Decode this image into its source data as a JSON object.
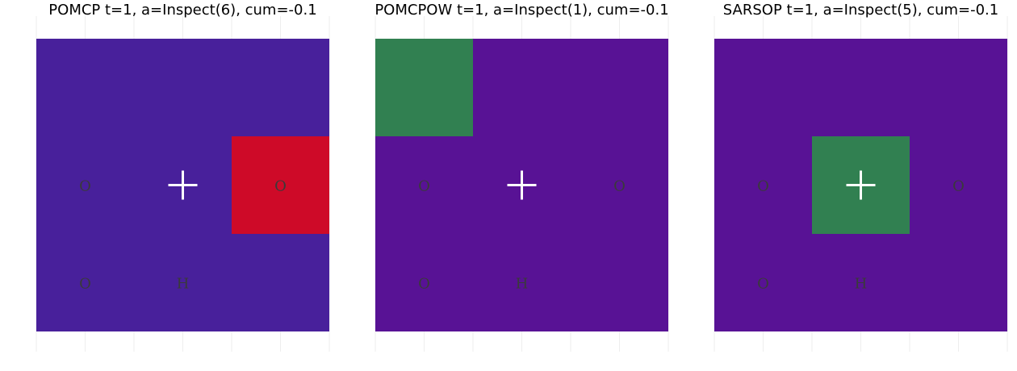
{
  "panels": [
    {
      "id": "pomcp",
      "title": "POMCP  t=1, a=Inspect(6), cum=-0.1",
      "background": "#48209b",
      "highlights": [
        {
          "row": 1,
          "col": 2,
          "color": "#ce0a28"
        }
      ],
      "labels": [
        {
          "row": 1,
          "col": 0,
          "text": "O"
        },
        {
          "row": 1,
          "col": 2,
          "text": "O"
        },
        {
          "row": 2,
          "col": 0,
          "text": "O"
        },
        {
          "row": 2,
          "col": 1,
          "text": "H"
        }
      ],
      "agent": {
        "row": 1,
        "col": 1
      }
    },
    {
      "id": "pomcpow",
      "title": "POMCPOW  t=1, a=Inspect(1), cum=-0.1",
      "background": "#581295",
      "highlights": [
        {
          "row": 0,
          "col": 0,
          "color": "#318051"
        }
      ],
      "labels": [
        {
          "row": 1,
          "col": 0,
          "text": "O"
        },
        {
          "row": 1,
          "col": 2,
          "text": "O"
        },
        {
          "row": 2,
          "col": 0,
          "text": "O"
        },
        {
          "row": 2,
          "col": 1,
          "text": "H"
        }
      ],
      "agent": {
        "row": 1,
        "col": 1
      }
    },
    {
      "id": "sarsop",
      "title": "SARSOP  t=1, a=Inspect(5), cum=-0.1",
      "background": "#581295",
      "highlights": [
        {
          "row": 1,
          "col": 1,
          "color": "#318051"
        }
      ],
      "labels": [
        {
          "row": 1,
          "col": 0,
          "text": "O"
        },
        {
          "row": 1,
          "col": 2,
          "text": "O"
        },
        {
          "row": 2,
          "col": 0,
          "text": "O"
        },
        {
          "row": 2,
          "col": 1,
          "text": "H"
        }
      ],
      "agent": {
        "row": 1,
        "col": 1
      }
    }
  ],
  "grid": {
    "rows": 3,
    "cols": 3
  }
}
